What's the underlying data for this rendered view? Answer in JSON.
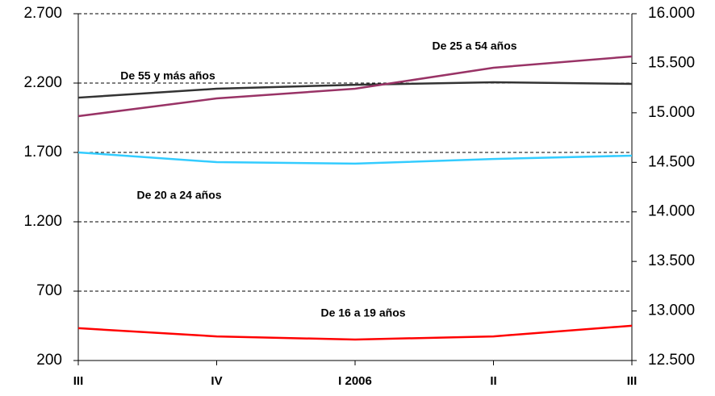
{
  "chart_data": {
    "type": "line",
    "categories": [
      "III",
      "IV",
      "I  2006",
      "II",
      "III"
    ],
    "series": [
      {
        "name": "De 55 y más años",
        "color": "#333333",
        "values": [
          2095,
          2159,
          2188,
          2206,
          2194
        ]
      },
      {
        "name": "De 25 a 54 años",
        "color": "#993366",
        "axis": "y2",
        "values": [
          14966,
          15145,
          15243,
          15455,
          15569
        ]
      },
      {
        "name": "De 20 a 24 años",
        "color": "#33ccff",
        "values": [
          1700,
          1630,
          1619,
          1653,
          1677
        ]
      },
      {
        "name": "De 16 a 19 años",
        "color": "#ff0000",
        "values": [
          433,
          374,
          351,
          374,
          451
        ]
      }
    ],
    "ylim": [
      200,
      2700
    ],
    "yticks": [
      {
        "value": 200,
        "label": "200"
      },
      {
        "value": 700,
        "label": "700"
      },
      {
        "value": 1200,
        "label": "1.200"
      },
      {
        "value": 1700,
        "label": "1.700"
      },
      {
        "value": 2200,
        "label": "2.200"
      },
      {
        "value": 2700,
        "label": "2.700"
      }
    ],
    "y2lim": [
      12500,
      16000
    ],
    "y2ticks": [
      {
        "value": 12500,
        "label": "12.500"
      },
      {
        "value": 13000,
        "label": "13.000"
      },
      {
        "value": 13500,
        "label": "13.500"
      },
      {
        "value": 14000,
        "label": "14.000"
      },
      {
        "value": 14500,
        "label": "14.500"
      },
      {
        "value": 15000,
        "label": "15.000"
      },
      {
        "value": 15500,
        "label": "15.500"
      },
      {
        "value": 16000,
        "label": "16.000"
      }
    ],
    "grid": true
  }
}
